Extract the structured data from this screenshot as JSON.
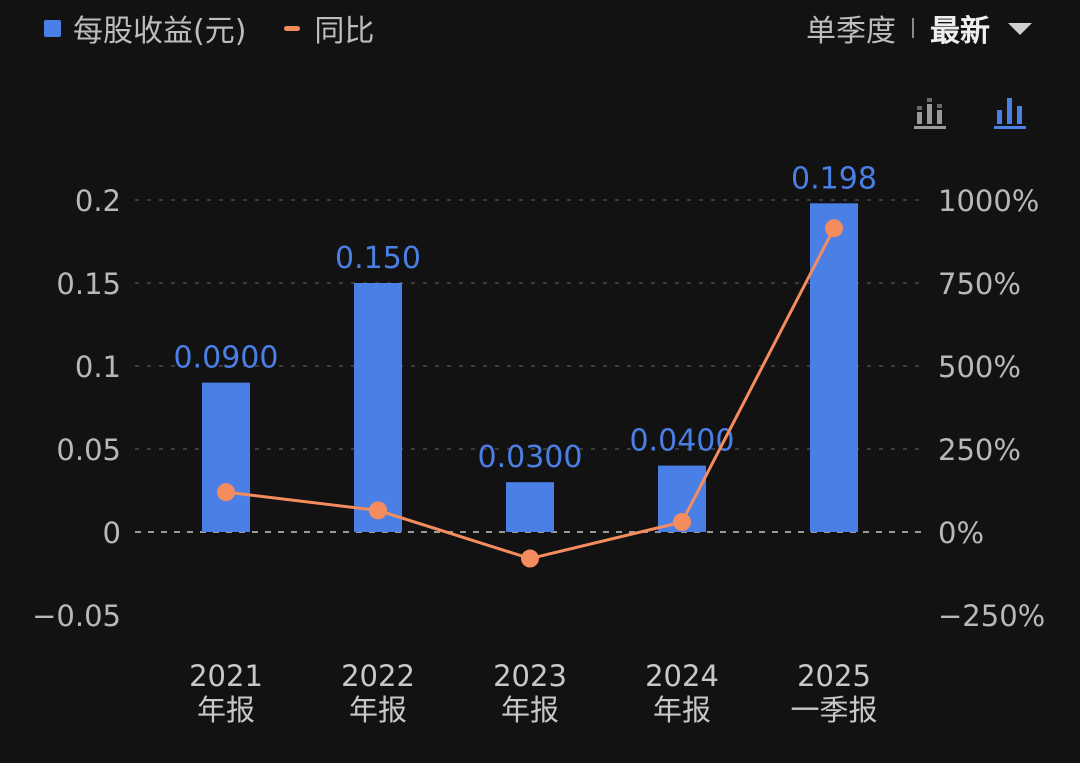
{
  "legend": {
    "bar_label": "每股收益(元)",
    "line_label": "同比",
    "bar_color": "#4a7fe6",
    "line_color": "#f58c5e"
  },
  "period": {
    "option": "单季度",
    "selected": "最新"
  },
  "icons": {
    "grouped": "stacked-bar-chart-icon",
    "single": "bar-chart-icon"
  },
  "chart_data": {
    "type": "bar",
    "categories": [
      [
        "2021",
        "年报"
      ],
      [
        "2022",
        "年报"
      ],
      [
        "2023",
        "年报"
      ],
      [
        "2024",
        "年报"
      ],
      [
        "2025",
        "一季报"
      ]
    ],
    "series": [
      {
        "name": "每股收益(元)",
        "type": "bar",
        "axis": "left",
        "values": [
          0.09,
          0.15,
          0.03,
          0.04,
          0.198
        ],
        "labels": [
          "0.0900",
          "0.150",
          "0.0300",
          "0.0400",
          "0.198"
        ]
      },
      {
        "name": "同比",
        "type": "line",
        "axis": "right",
        "values": [
          120,
          65,
          -80,
          30,
          915
        ]
      }
    ],
    "y_left": {
      "range": [
        -0.05,
        0.2
      ],
      "ticks": [
        0.2,
        0.15,
        0.1,
        0.05,
        0,
        -0.05
      ],
      "tick_labels": [
        "0.2",
        "0.15",
        "0.1",
        "0.05",
        "0",
        "−0.05"
      ]
    },
    "y_right": {
      "range": [
        -250,
        1000
      ],
      "ticks": [
        1000,
        750,
        500,
        250,
        0,
        -250
      ],
      "tick_labels": [
        "1000%",
        "750%",
        "500%",
        "250%",
        "0%",
        "−250%"
      ]
    },
    "grid": true,
    "legend_position": "top-left"
  }
}
